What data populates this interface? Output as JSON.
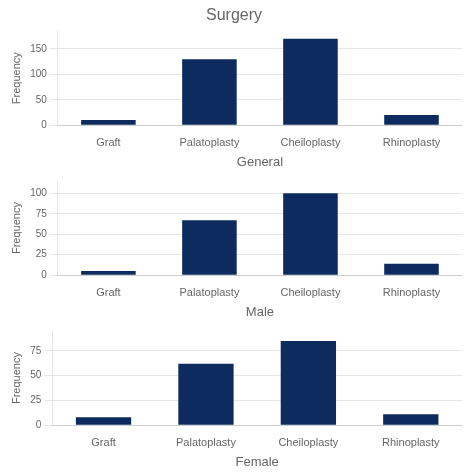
{
  "chart_data": [
    {
      "type": "bar",
      "title": "Surgery",
      "categories": [
        "Graft",
        "Palatoplasty",
        "Cheiloplasty",
        "Rhinoplasty"
      ],
      "values": [
        10,
        130,
        170,
        20
      ],
      "color": "#0d2b5e",
      "xlabel": "General",
      "ylabel": "Frequency",
      "ylim": [
        0,
        185
      ],
      "yticks": [
        0,
        50,
        100,
        150
      ],
      "grid": true
    },
    {
      "type": "bar",
      "categories": [
        "Graft",
        "Palatoplasty",
        "Cheiloplasty",
        "Rhinoplasty"
      ],
      "values": [
        5,
        67,
        100,
        14
      ],
      "color": "#0d2b5e",
      "xlabel": "Male",
      "ylabel": "Frequency",
      "ylim": [
        0,
        115
      ],
      "yticks": [
        0,
        25,
        50,
        75,
        100
      ],
      "grid": true
    },
    {
      "type": "bar",
      "categories": [
        "Graft",
        "Palatoplasty",
        "Cheiloplasty",
        "Rhinoplasty"
      ],
      "values": [
        8,
        62,
        85,
        11
      ],
      "color": "#0d2b5e",
      "xlabel": "Female",
      "ylabel": "Frequency",
      "ylim": [
        0,
        95
      ],
      "yticks": [
        0,
        25,
        50,
        75
      ],
      "grid": true
    }
  ]
}
